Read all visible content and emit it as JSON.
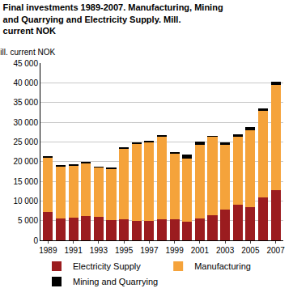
{
  "chart_data": {
    "type": "bar",
    "title": "Final investments 1989-2007. Manufacturing, Mining and Quarrying and Electricity Supply. Mill. current NOK",
    "y_label": "Mill. current NOK",
    "stacked": true,
    "grid": true,
    "legend": "bottom",
    "categories": [
      "1989",
      null,
      "1991",
      null,
      "1993",
      null,
      "1995",
      null,
      "1997",
      null,
      "1999",
      null,
      "2001",
      null,
      "2003",
      null,
      "2005",
      null,
      "2007"
    ],
    "series": [
      {
        "name": "Electricity Supply",
        "color": "#9b1c1f",
        "values": [
          7200,
          5600,
          5700,
          6100,
          5900,
          5100,
          5400,
          5000,
          5000,
          5300,
          5400,
          4700,
          5500,
          6300,
          7900,
          9000,
          8500,
          10800,
          12800
        ]
      },
      {
        "name": "Manufacturing",
        "color": "#f5a33b",
        "values": [
          13700,
          13200,
          13200,
          13400,
          12500,
          13000,
          17800,
          19500,
          19800,
          21000,
          16600,
          16100,
          18700,
          19900,
          16400,
          17400,
          19500,
          22000,
          26600
        ]
      },
      {
        "name": "Mining and Quarrying",
        "color": "#000000",
        "values": [
          400,
          400,
          400,
          400,
          400,
          300,
          400,
          400,
          400,
          500,
          500,
          900,
          900,
          400,
          500,
          600,
          700,
          700,
          900
        ]
      }
    ],
    "ylim": [
      0,
      45000
    ],
    "yticks": [
      0,
      {
        "value": 5000,
        "label": "5 000"
      },
      {
        "value": 10000,
        "label": "10 000"
      },
      {
        "value": 15000,
        "label": "15 000"
      },
      {
        "value": 20000,
        "label": "20 000"
      },
      {
        "value": 25000,
        "label": "25 000"
      },
      {
        "value": 30000,
        "label": "30 000"
      },
      {
        "value": 35000,
        "label": "35 000"
      },
      {
        "value": 40000,
        "label": "40 000"
      },
      {
        "value": 45000,
        "label": "45 000"
      }
    ]
  }
}
